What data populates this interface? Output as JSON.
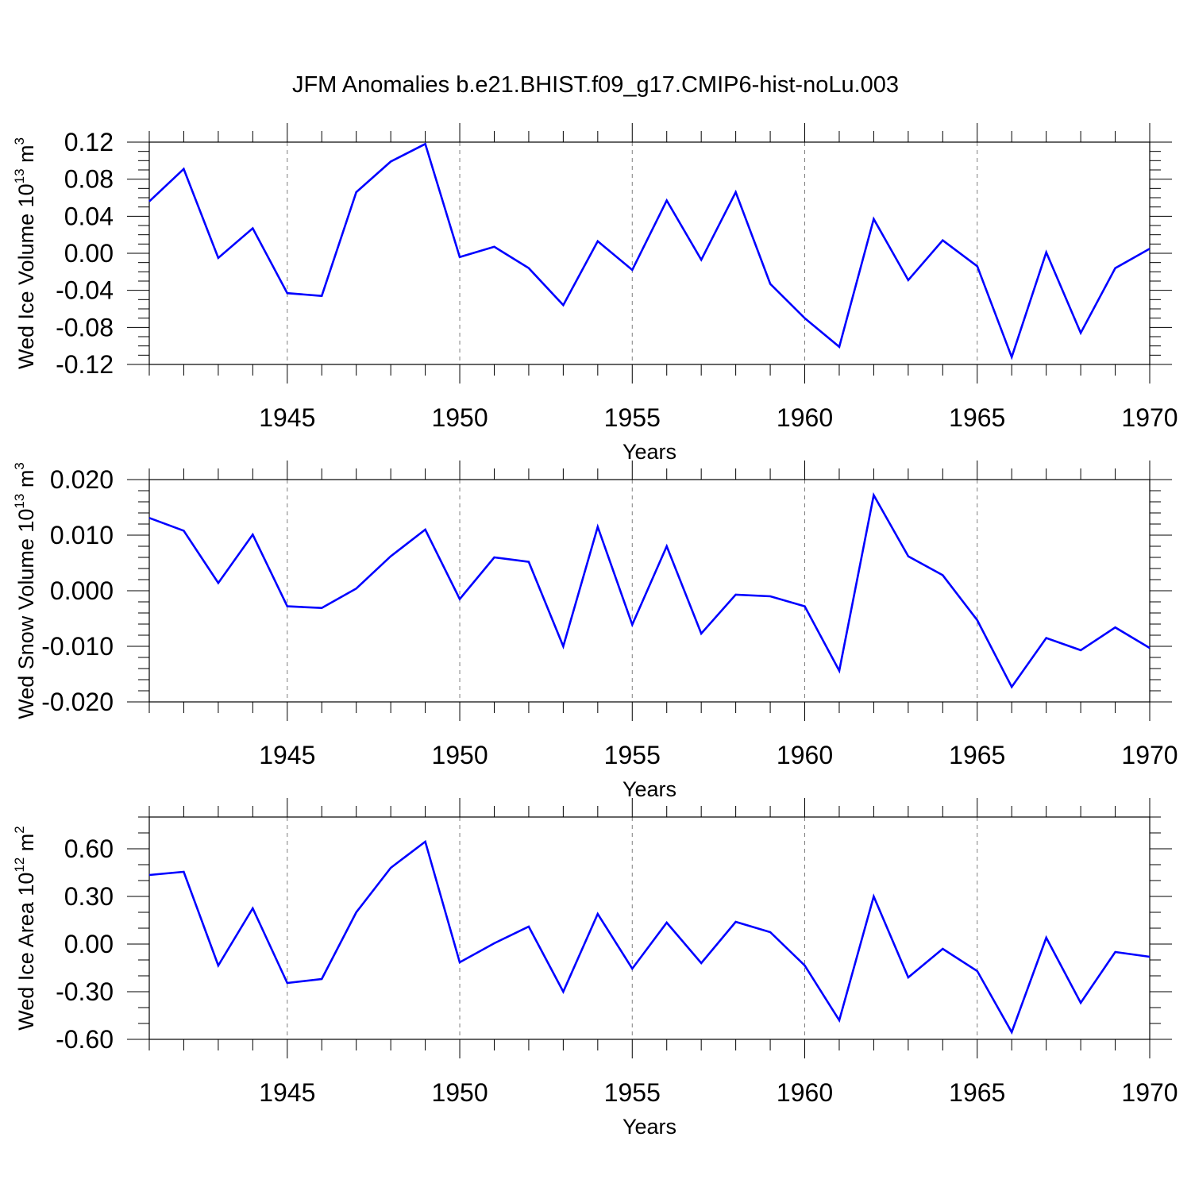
{
  "title": "JFM Anomalies b.e21.BHIST.f09_g17.CMIP6-hist-noLu.003",
  "colors": {
    "line": "#0000ff",
    "axis": "#000000",
    "grid": "#7f7f7f"
  },
  "chart_data": [
    {
      "type": "line",
      "ylabel_main": "Wed Ice Volume 10",
      "ylabel_exp": "13",
      "ylabel_unit": " m",
      "ylabel_unit_exp": "3",
      "xlabel": "Years",
      "xlim": [
        1941,
        1970
      ],
      "ylim": [
        -0.12,
        0.12
      ],
      "xticks": [
        1945,
        1950,
        1955,
        1960,
        1965,
        1970
      ],
      "xtick_labels": [
        "1945",
        "1950",
        "1955",
        "1960",
        "1965",
        "1970"
      ],
      "yticks": [
        0.12,
        0.08,
        0.04,
        0.0,
        -0.04,
        -0.08,
        -0.12
      ],
      "ytick_labels": [
        "0.12",
        "0.08",
        "0.04",
        "0.00",
        "-0.04",
        "-0.08",
        "-0.12"
      ],
      "ytick_minor_step": 0.01,
      "x": [
        1941,
        1942,
        1943,
        1944,
        1945,
        1946,
        1947,
        1948,
        1949,
        1950,
        1951,
        1952,
        1953,
        1954,
        1955,
        1956,
        1957,
        1958,
        1959,
        1960,
        1961,
        1962,
        1963,
        1964,
        1965,
        1966,
        1967,
        1968,
        1969,
        1970
      ],
      "values": [
        0.056,
        0.091,
        -0.005,
        0.027,
        -0.043,
        -0.046,
        0.066,
        0.099,
        0.118,
        -0.004,
        0.007,
        -0.016,
        -0.056,
        0.013,
        -0.018,
        0.057,
        -0.007,
        0.066,
        -0.033,
        -0.07,
        -0.101,
        0.037,
        -0.029,
        0.014,
        -0.014,
        -0.112,
        0.001,
        -0.086,
        -0.016,
        0.005
      ]
    },
    {
      "type": "line",
      "ylabel_main": "Wed Snow Volume 10",
      "ylabel_exp": "13",
      "ylabel_unit": " m",
      "ylabel_unit_exp": "3",
      "xlabel": "Years",
      "xlim": [
        1941,
        1970
      ],
      "ylim": [
        -0.02,
        0.02
      ],
      "xticks": [
        1945,
        1950,
        1955,
        1960,
        1965,
        1970
      ],
      "xtick_labels": [
        "1945",
        "1950",
        "1955",
        "1960",
        "1965",
        "1970"
      ],
      "yticks": [
        0.02,
        0.01,
        0.0,
        -0.01,
        -0.02
      ],
      "ytick_labels": [
        "0.020",
        "0.010",
        "0.000",
        "-0.010",
        "-0.020"
      ],
      "ytick_minor_step": 0.002,
      "x": [
        1941,
        1942,
        1943,
        1944,
        1945,
        1946,
        1947,
        1948,
        1949,
        1950,
        1951,
        1952,
        1953,
        1954,
        1955,
        1956,
        1957,
        1958,
        1959,
        1960,
        1961,
        1962,
        1963,
        1964,
        1965,
        1966,
        1967,
        1968,
        1969,
        1970
      ],
      "values": [
        0.0131,
        0.0108,
        0.0014,
        0.0101,
        -0.0028,
        -0.0031,
        0.0004,
        0.0062,
        0.011,
        -0.0015,
        0.006,
        0.0052,
        -0.01,
        0.0115,
        -0.0061,
        0.008,
        -0.0077,
        -0.0007,
        -0.001,
        -0.0028,
        -0.0144,
        0.0172,
        0.0062,
        0.0028,
        -0.0053,
        -0.0173,
        -0.0085,
        -0.0107,
        -0.0066,
        -0.0103
      ]
    },
    {
      "type": "line",
      "ylabel_main": "Wed Ice Area 10",
      "ylabel_exp": "12",
      "ylabel_unit": " m",
      "ylabel_unit_exp": "2",
      "xlabel": "Years",
      "xlim": [
        1941,
        1970
      ],
      "ylim": [
        -0.6,
        0.8
      ],
      "xticks": [
        1945,
        1950,
        1955,
        1960,
        1965,
        1970
      ],
      "xtick_labels": [
        "1945",
        "1950",
        "1955",
        "1960",
        "1965",
        "1970"
      ],
      "yticks": [
        0.6,
        0.3,
        0.0,
        -0.3,
        -0.6
      ],
      "ytick_labels": [
        "0.60",
        "0.30",
        "0.00",
        "-0.30",
        "-0.60"
      ],
      "ytick_minor_step": 0.1,
      "x": [
        1941,
        1942,
        1943,
        1944,
        1945,
        1946,
        1947,
        1948,
        1949,
        1950,
        1951,
        1952,
        1953,
        1954,
        1955,
        1956,
        1957,
        1958,
        1959,
        1960,
        1961,
        1962,
        1963,
        1964,
        1965,
        1966,
        1967,
        1968,
        1969,
        1970
      ],
      "values": [
        0.435,
        0.455,
        -0.135,
        0.225,
        -0.245,
        -0.22,
        0.2,
        0.48,
        0.645,
        -0.115,
        0.005,
        0.11,
        -0.3,
        0.19,
        -0.155,
        0.135,
        -0.12,
        0.14,
        0.075,
        -0.135,
        -0.48,
        0.3,
        -0.21,
        -0.03,
        -0.17,
        -0.555,
        0.04,
        -0.37,
        -0.05,
        -0.08
      ]
    }
  ]
}
